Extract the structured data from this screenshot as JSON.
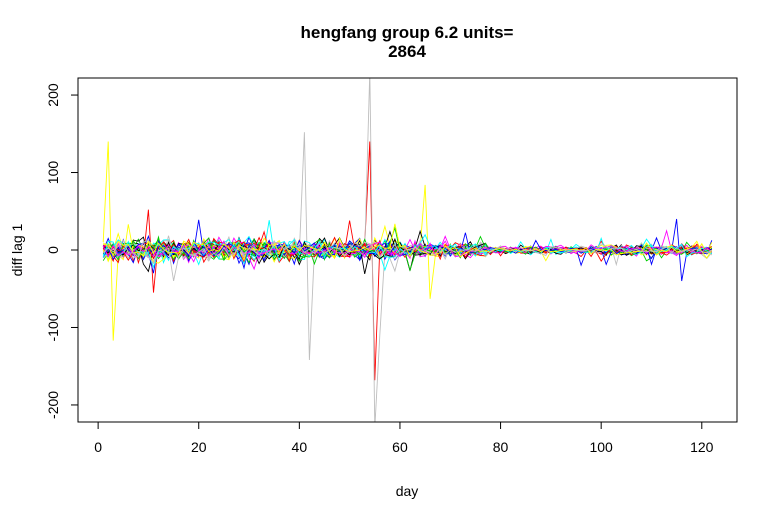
{
  "chart_data": {
    "type": "line",
    "title_line1": "hengfang group 6.2 units=",
    "title_line2": "2864",
    "xlabel": "day",
    "ylabel": "diff lag 1",
    "xlim": [
      -4,
      127
    ],
    "ylim": [
      -222,
      222
    ],
    "x_ticks": [
      0,
      20,
      40,
      60,
      80,
      100,
      120
    ],
    "y_ticks": [
      -200,
      -100,
      0,
      100,
      200
    ],
    "x_tick_labels": [
      "0",
      "20",
      "40",
      "60",
      "80",
      "100",
      "120"
    ],
    "y_tick_labels": [
      "-200",
      "-100",
      "0",
      "100",
      "200"
    ],
    "grid": false,
    "legend": "none",
    "x_range_of_series": [
      1,
      122
    ],
    "series_colors": [
      "#000000",
      "#ff0000",
      "#00cd00",
      "#0000ff",
      "#00ffff",
      "#ff00ff",
      "#ffff00",
      "#bebebe"
    ],
    "series_per_color": 5,
    "notable_extremes": [
      {
        "color": "#ffff00",
        "x": 2,
        "y": 140
      },
      {
        "color": "#ffff00",
        "x": 3,
        "y": -117
      },
      {
        "color": "#ff0000",
        "x": 10,
        "y": 52
      },
      {
        "color": "#ff0000",
        "x": 11,
        "y": -55
      },
      {
        "color": "#bebebe",
        "x": 41,
        "y": 152
      },
      {
        "color": "#bebebe",
        "x": 42,
        "y": -142
      },
      {
        "color": "#ff0000",
        "x": 54,
        "y": 140
      },
      {
        "color": "#ff0000",
        "x": 55,
        "y": -168
      },
      {
        "color": "#bebebe",
        "x": 54,
        "y": 230
      },
      {
        "color": "#bebebe",
        "x": 55,
        "y": -230
      },
      {
        "color": "#bebebe",
        "x": 56,
        "y": -110
      },
      {
        "color": "#ffff00",
        "x": 65,
        "y": 84
      },
      {
        "color": "#ffff00",
        "x": 66,
        "y": -63
      },
      {
        "color": "#0000ff",
        "x": 115,
        "y": 40
      },
      {
        "color": "#0000ff",
        "x": 116,
        "y": -40
      }
    ]
  }
}
